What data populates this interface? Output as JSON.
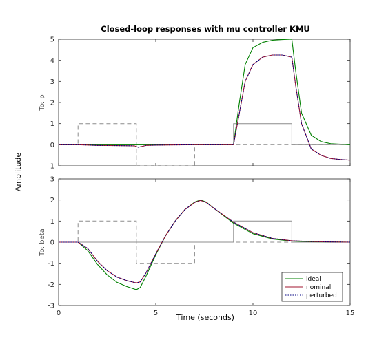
{
  "title": "Closed-loop responses with mu controller KMU",
  "xlabel": "Time (seconds)",
  "ylabel": "Amplitude",
  "colors": {
    "ideal": "#008000",
    "nominal": "#a2142f",
    "perturbed": "#000080",
    "reference": "#8c8c8c",
    "axes": "#262626"
  },
  "chart_data": [
    {
      "type": "line",
      "ylabel": "To: ρ",
      "xlim": [
        0,
        15
      ],
      "ylim": [
        -1,
        5
      ],
      "xticks": [
        "0",
        "5",
        "10",
        "15"
      ],
      "yticks": [
        "-1",
        "0",
        "1",
        "2",
        "3",
        "4",
        "5"
      ],
      "reference_lines": [
        {
          "name": "input-1",
          "style": "dashed",
          "x": [
            0,
            1,
            1,
            4,
            4,
            7,
            7,
            9,
            9,
            15
          ],
          "y": [
            0,
            0,
            1,
            1,
            -1,
            -1,
            0,
            0,
            0,
            0
          ]
        },
        {
          "name": "input-2",
          "style": "solid",
          "x": [
            0,
            9,
            9,
            12,
            12,
            15
          ],
          "y": [
            0,
            0,
            1,
            1,
            0,
            0
          ]
        }
      ],
      "series": [
        {
          "name": "ideal",
          "x": [
            0,
            1,
            4,
            5,
            7,
            9,
            9.3,
            9.6,
            10,
            10.5,
            11,
            11.5,
            12,
            12.2,
            12.5,
            13,
            13.5,
            14,
            15
          ],
          "y": [
            0,
            0,
            0,
            0,
            0,
            0,
            2.0,
            3.8,
            4.6,
            4.85,
            4.95,
            4.98,
            5.0,
            3.5,
            1.5,
            0.45,
            0.15,
            0.05,
            0.0
          ]
        },
        {
          "name": "nominal",
          "x": [
            0,
            1,
            2,
            3,
            3.9,
            4.1,
            4.5,
            5,
            6,
            7,
            9,
            9.3,
            9.6,
            10,
            10.5,
            11,
            11.5,
            12,
            12.2,
            12.5,
            13,
            13.5,
            14,
            14.5,
            15
          ],
          "y": [
            0,
            0,
            -0.03,
            -0.04,
            -0.05,
            -0.12,
            -0.03,
            -0.02,
            -0.01,
            0,
            0,
            1.5,
            3.0,
            3.8,
            4.15,
            4.25,
            4.25,
            4.15,
            2.8,
            1.0,
            -0.2,
            -0.5,
            -0.65,
            -0.7,
            -0.73
          ]
        },
        {
          "name": "perturbed",
          "x": [
            0,
            1,
            2,
            3,
            3.9,
            4.1,
            4.5,
            5,
            6,
            7,
            9,
            9.3,
            9.6,
            10,
            10.5,
            11,
            11.5,
            12,
            12.2,
            12.5,
            13,
            13.5,
            14,
            14.5,
            15
          ],
          "y": [
            0,
            0,
            -0.03,
            -0.04,
            -0.05,
            -0.12,
            -0.03,
            -0.02,
            -0.01,
            0,
            0,
            1.5,
            3.0,
            3.8,
            4.15,
            4.25,
            4.25,
            4.15,
            2.8,
            1.0,
            -0.2,
            -0.5,
            -0.65,
            -0.7,
            -0.73
          ]
        }
      ]
    },
    {
      "type": "line",
      "ylabel": "To: beta",
      "xlim": [
        0,
        15
      ],
      "ylim": [
        -3,
        3
      ],
      "xticks": [
        "0",
        "5",
        "10",
        "15"
      ],
      "yticks": [
        "-3",
        "-2",
        "-1",
        "0",
        "1",
        "2",
        "3"
      ],
      "reference_lines": [
        {
          "name": "input-1",
          "style": "dashed",
          "x": [
            0,
            1,
            1,
            4,
            4,
            7,
            7,
            9,
            9,
            15
          ],
          "y": [
            0,
            0,
            1,
            1,
            -1,
            -1,
            0,
            0,
            0,
            0
          ]
        },
        {
          "name": "input-2",
          "style": "solid",
          "x": [
            0,
            9,
            9,
            12,
            12,
            15
          ],
          "y": [
            0,
            0,
            1,
            1,
            0,
            0
          ]
        }
      ],
      "series": [
        {
          "name": "ideal",
          "x": [
            0,
            1,
            1.5,
            2,
            2.5,
            3,
            3.5,
            4,
            4.2,
            4.5,
            5,
            5.5,
            6,
            6.5,
            7,
            7.3,
            7.6,
            8,
            9,
            10,
            11,
            12,
            13,
            14,
            15
          ],
          "y": [
            0,
            0,
            -0.4,
            -1.05,
            -1.55,
            -1.9,
            -2.1,
            -2.25,
            -2.15,
            -1.6,
            -0.6,
            0.3,
            1.0,
            1.55,
            1.9,
            2.0,
            1.9,
            1.6,
            0.9,
            0.4,
            0.15,
            0.05,
            0.02,
            0.01,
            0
          ]
        },
        {
          "name": "nominal",
          "x": [
            0,
            1,
            1.5,
            2,
            2.5,
            3,
            3.5,
            4,
            4.2,
            4.5,
            5,
            5.5,
            6,
            6.5,
            7,
            7.3,
            7.6,
            8,
            9,
            10,
            11,
            12,
            13,
            14,
            15
          ],
          "y": [
            0,
            0,
            -0.3,
            -0.9,
            -1.35,
            -1.65,
            -1.82,
            -1.93,
            -1.88,
            -1.45,
            -0.55,
            0.3,
            1.0,
            1.55,
            1.88,
            1.98,
            1.88,
            1.6,
            0.95,
            0.45,
            0.18,
            0.07,
            0.03,
            0.01,
            0
          ]
        },
        {
          "name": "perturbed",
          "x": [
            0,
            1,
            1.5,
            2,
            2.5,
            3,
            3.5,
            4,
            4.2,
            4.5,
            5,
            5.5,
            6,
            6.5,
            7,
            7.3,
            7.6,
            8,
            9,
            10,
            11,
            12,
            13,
            14,
            15
          ],
          "y": [
            0,
            0,
            -0.3,
            -0.9,
            -1.35,
            -1.65,
            -1.82,
            -1.93,
            -1.88,
            -1.45,
            -0.55,
            0.3,
            1.0,
            1.55,
            1.88,
            1.98,
            1.88,
            1.6,
            0.95,
            0.45,
            0.18,
            0.07,
            0.03,
            0.01,
            0
          ]
        }
      ]
    }
  ],
  "legend": {
    "placement": "bottom-right of lower panel",
    "entries": [
      "ideal",
      "nominal",
      "perturbed"
    ]
  }
}
